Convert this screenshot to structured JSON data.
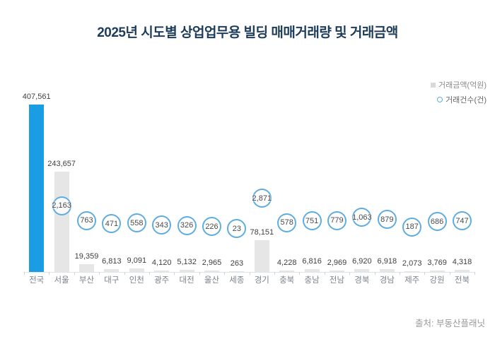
{
  "title": "2025년 시도별 상업업무용 빌딩 매매거래량 및 거래금액",
  "legend": {
    "amount_label": "거래금액(억원)",
    "count_label": "거래건수(건)"
  },
  "source": "출처: 부동산플래닛",
  "colors": {
    "highlight_bar": "#1b9de4",
    "bar": "#e6e6e6",
    "circle_stroke": "#5fade0",
    "title": "#1d3c5a",
    "value_text": "#3f3f3f",
    "count_text": "#4a4a4a",
    "axis_text": "#7b838c",
    "legend_amount_text": "#8b8b8b",
    "legend_count_text": "#666666",
    "source_text": "#999999"
  },
  "chart_data": {
    "type": "bar",
    "categories": [
      "전국",
      "서울",
      "부산",
      "대구",
      "인천",
      "광주",
      "대전",
      "울산",
      "세종",
      "경기",
      "충북",
      "충남",
      "전남",
      "경북",
      "경남",
      "제주",
      "강원",
      "전북"
    ],
    "series": [
      {
        "name": "거래금액(억원)",
        "marker": "bar",
        "values": [
          407561,
          243657,
          19359,
          6813,
          9091,
          4120,
          5132,
          2965,
          263,
          78151,
          4228,
          6816,
          2969,
          6920,
          6918,
          2073,
          3769,
          4318
        ]
      },
      {
        "name": "거래건수(건)",
        "marker": "circle",
        "values": [
          null,
          2163,
          763,
          471,
          558,
          343,
          326,
          226,
          23,
          2871,
          578,
          751,
          779,
          1063,
          879,
          187,
          686,
          747
        ]
      }
    ],
    "highlight_index": 0,
    "ylim": [
      0,
      407561
    ],
    "grid": false,
    "legend_position": "top-right",
    "data_labels": true
  }
}
